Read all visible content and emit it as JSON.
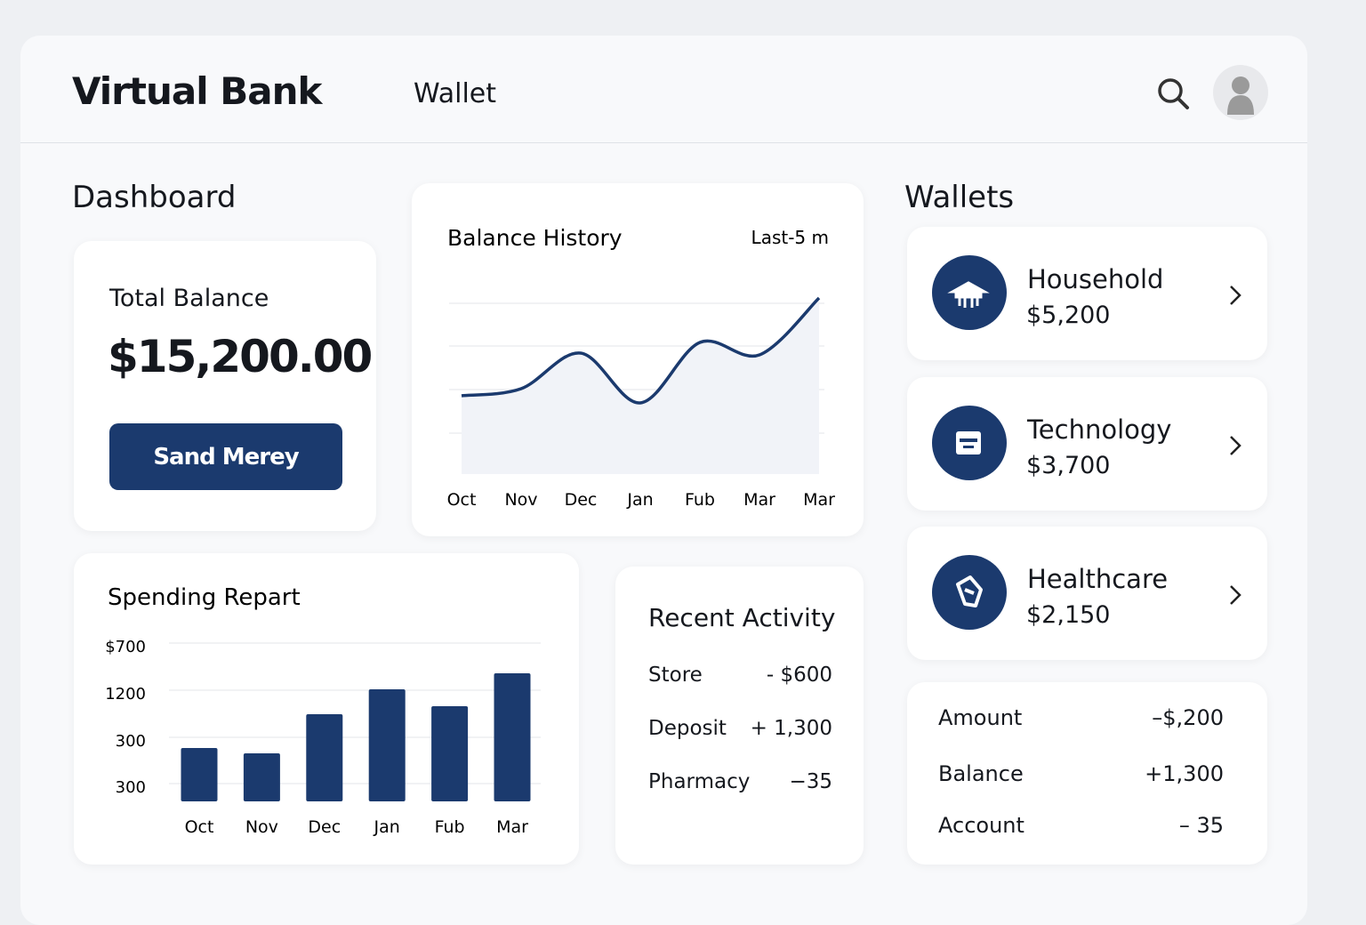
{
  "header": {
    "brand": "Virtual Bank",
    "nav": "Wallet"
  },
  "dashboard": {
    "title": "Dashboard",
    "balance_label": "Total Balance",
    "balance": "$15,200.00",
    "button": "Sand Merey"
  },
  "chart_data": [
    {
      "type": "line",
      "title": "Balance History",
      "subtitle": "Last-5 m",
      "categories": [
        "Oct",
        "Nov",
        "Dec",
        "Jan",
        "Fub",
        "Mar",
        "Mar"
      ],
      "values": [
        44,
        48,
        68,
        40,
        74,
        67,
        99
      ],
      "color": "#1b3a6e",
      "ylim": [
        0,
        100
      ]
    },
    {
      "type": "bar",
      "title": "Spending Repart",
      "y_labels": [
        "$700",
        "1200",
        "300",
        "300"
      ],
      "categories": [
        "Oct",
        "Nov",
        "Dec",
        "Jan",
        "Fub",
        "Mar"
      ],
      "values": [
        60,
        54,
        98,
        126,
        107,
        144
      ],
      "color": "#1b3a6e",
      "ylim": [
        0,
        180
      ]
    }
  ],
  "activity": {
    "title": "Recent Activity",
    "rows": [
      [
        "Store",
        "- $600"
      ],
      [
        "Deposit",
        "+ 1,300"
      ],
      [
        "Pharmacy",
        "−35"
      ]
    ]
  },
  "wallets": {
    "title": "Wallets",
    "items": [
      {
        "name": "Household",
        "amount": "$5,200"
      },
      {
        "name": "Technology",
        "amount": "$3,700"
      },
      {
        "name": "Healthcare",
        "amount": "$2,150"
      }
    ]
  },
  "summary": {
    "rows": [
      [
        "Amount",
        "–$,200"
      ],
      [
        "Balance",
        "+1,300"
      ],
      [
        "Account",
        "– 35"
      ]
    ]
  }
}
